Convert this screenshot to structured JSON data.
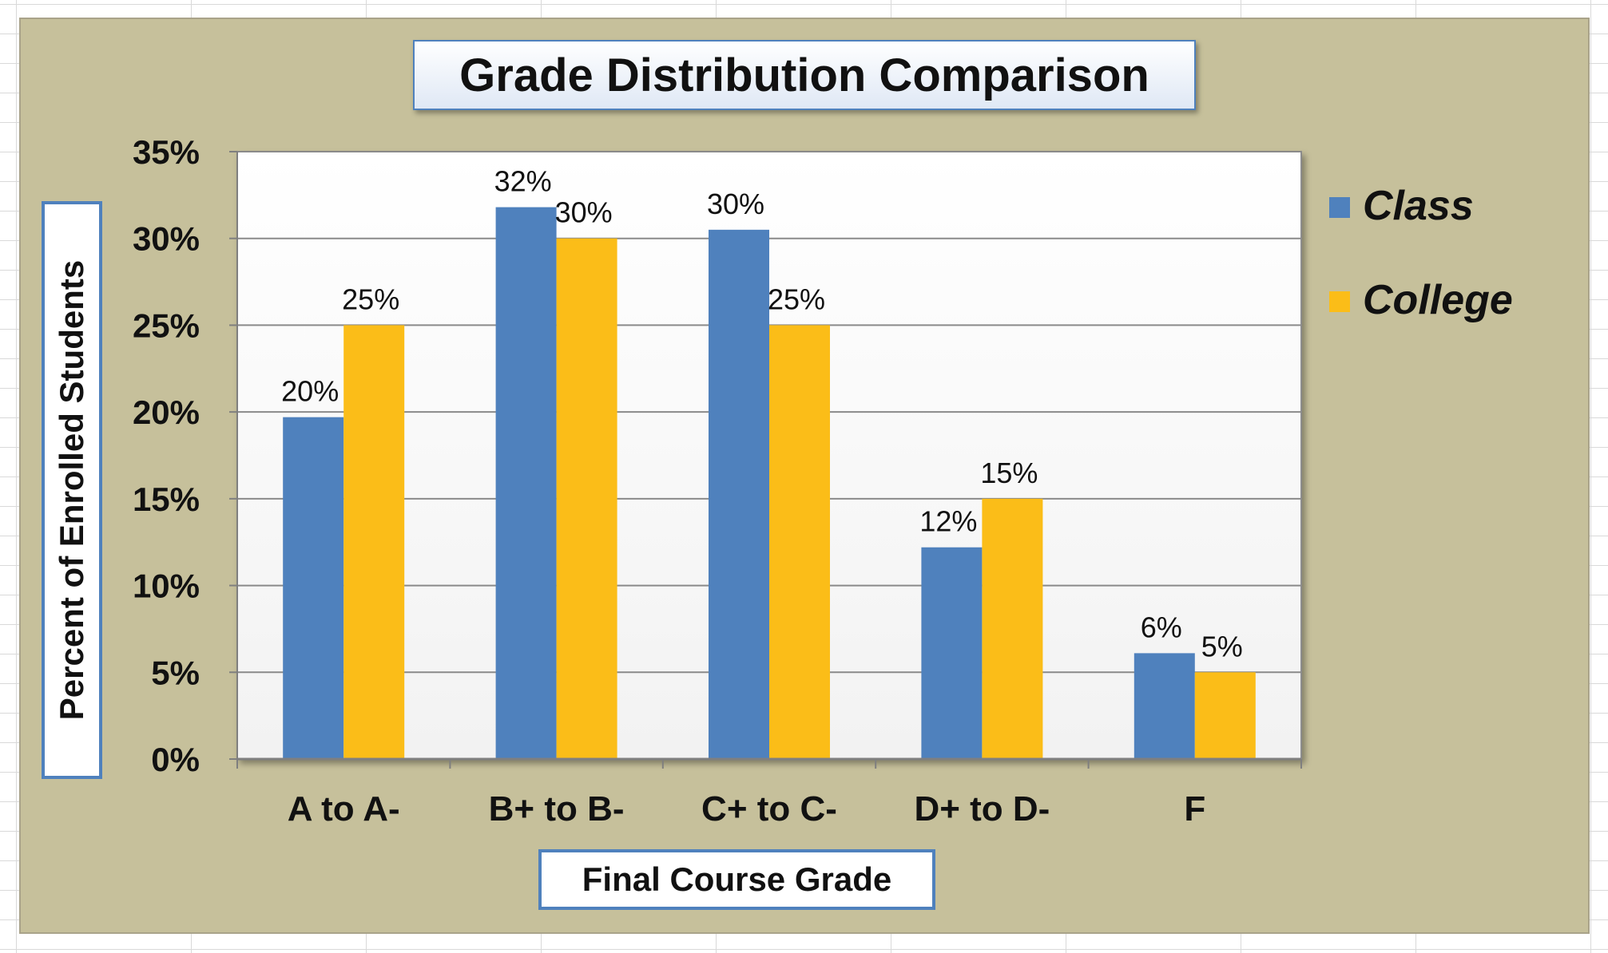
{
  "chart_data": {
    "type": "bar",
    "title": "Grade Distribution Comparison",
    "xlabel": "Final Course Grade",
    "ylabel": "Percent of Enrolled Students",
    "categories": [
      "A to A-",
      "B+ to B-",
      "C+ to C-",
      "D+ to D-",
      "F"
    ],
    "series": [
      {
        "name": "Class",
        "values": [
          19.7,
          31.8,
          30.5,
          12.2,
          6.1
        ],
        "labels": [
          "20%",
          "32%",
          "30%",
          "12%",
          "6%"
        ],
        "color": "#4f81bd"
      },
      {
        "name": "College",
        "values": [
          25,
          30,
          25,
          15,
          5
        ],
        "labels": [
          "25%",
          "30%",
          "25%",
          "15%",
          "5%"
        ],
        "color": "#fbbd18"
      }
    ],
    "ylim": [
      0,
      35
    ],
    "yticks": [
      "0%",
      "5%",
      "10%",
      "15%",
      "20%",
      "25%",
      "30%",
      "35%"
    ],
    "grid": true,
    "legend_position": "right",
    "colors": {
      "chart_background": "#c6c09b",
      "plot_background": "#ffffff",
      "box_border": "#4f81bd"
    }
  }
}
